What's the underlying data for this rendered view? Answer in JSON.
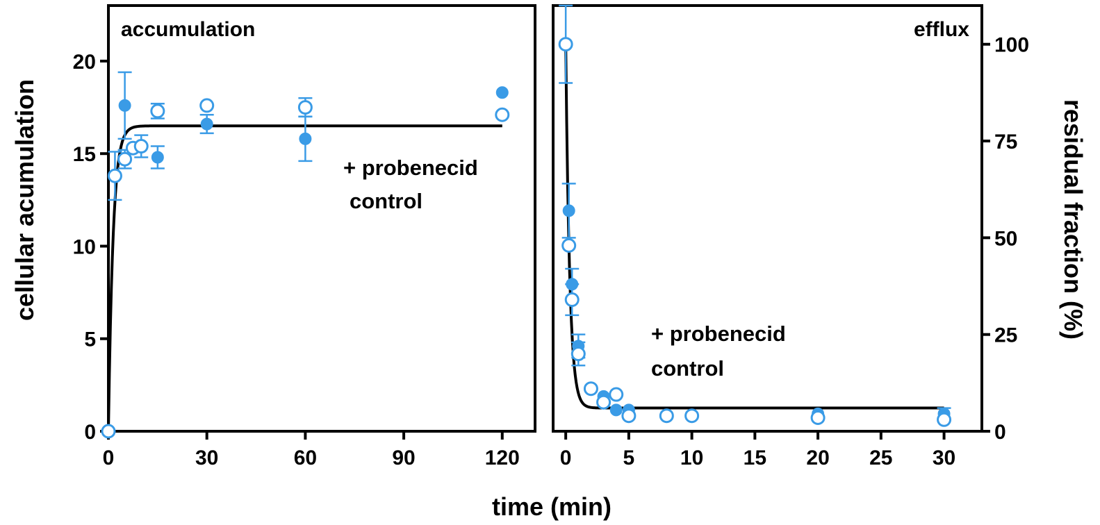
{
  "shared": {
    "xlabel": "time (min)"
  },
  "colors": {
    "series": "#3a9be6",
    "fit": "#000000",
    "axes": "#000000"
  },
  "chart_data": [
    {
      "id": "accumulation",
      "type": "scatter",
      "title": "accumulation",
      "ylabel": "cellular acumulation",
      "xlim": [
        0,
        130
      ],
      "ylim": [
        0,
        23
      ],
      "xticks": [
        0,
        30,
        60,
        90,
        120
      ],
      "yticks": [
        0,
        5,
        10,
        15,
        20
      ],
      "legend": {
        "position": "center-right",
        "entries": [
          "+ probenecid",
          "control"
        ]
      },
      "series": [
        {
          "name": "+ probenecid",
          "marker": "filled",
          "points": [
            {
              "x": 0,
              "y": 0
            },
            {
              "x": 5,
              "y": 17.6,
              "err": 1.8
            },
            {
              "x": 15,
              "y": 14.8,
              "err": 0.6
            },
            {
              "x": 30,
              "y": 16.6,
              "err": 0.5
            },
            {
              "x": 60,
              "y": 15.8,
              "err": 1.2
            },
            {
              "x": 120,
              "y": 18.3
            }
          ]
        },
        {
          "name": "control",
          "marker": "open",
          "points": [
            {
              "x": 0,
              "y": 0
            },
            {
              "x": 2,
              "y": 13.8,
              "err": 1.3
            },
            {
              "x": 5,
              "y": 14.7,
              "err": 0.5
            },
            {
              "x": 7.5,
              "y": 15.3
            },
            {
              "x": 10,
              "y": 15.4,
              "err": 0.6
            },
            {
              "x": 15,
              "y": 17.3,
              "err": 0.4
            },
            {
              "x": 30,
              "y": 17.6
            },
            {
              "x": 60,
              "y": 17.5,
              "err": 0.5
            },
            {
              "x": 120,
              "y": 17.1
            }
          ]
        }
      ],
      "fit": {
        "kind": "exp-rise",
        "plateau": 16.5,
        "k": 0.7,
        "x_range": [
          0,
          120
        ]
      }
    },
    {
      "id": "efflux",
      "type": "scatter",
      "title": "efflux",
      "ylabel": "residual fraction (%)",
      "yaxis_side": "right",
      "xlim": [
        -1,
        33
      ],
      "ylim": [
        0,
        110
      ],
      "xticks": [
        0,
        5,
        10,
        15,
        20,
        25,
        30
      ],
      "yticks": [
        0,
        25,
        50,
        75,
        100
      ],
      "legend": {
        "position": "center",
        "entries": [
          "+ probenecid",
          "control"
        ]
      },
      "series": [
        {
          "name": "+ probenecid",
          "marker": "filled",
          "points": [
            {
              "x": 0.25,
              "y": 57,
              "err": 7
            },
            {
              "x": 0.5,
              "y": 38,
              "err": 4
            },
            {
              "x": 1,
              "y": 22,
              "err": 3
            },
            {
              "x": 3,
              "y": 9
            },
            {
              "x": 4,
              "y": 5.5
            },
            {
              "x": 5,
              "y": 5.5
            },
            {
              "x": 20,
              "y": 4.5
            },
            {
              "x": 30,
              "y": 4.5,
              "err": 1.5
            }
          ]
        },
        {
          "name": "control",
          "marker": "open",
          "points": [
            {
              "x": 0,
              "y": 100,
              "err": 10
            },
            {
              "x": 0.25,
              "y": 48
            },
            {
              "x": 0.5,
              "y": 34,
              "err": 4
            },
            {
              "x": 1,
              "y": 20,
              "err": 3
            },
            {
              "x": 2,
              "y": 11
            },
            {
              "x": 3,
              "y": 7.5
            },
            {
              "x": 4,
              "y": 9.5
            },
            {
              "x": 5,
              "y": 4
            },
            {
              "x": 8,
              "y": 4
            },
            {
              "x": 10,
              "y": 4
            },
            {
              "x": 20,
              "y": 3.5
            },
            {
              "x": 30,
              "y": 3
            }
          ]
        }
      ],
      "fit": {
        "kind": "exp-decay",
        "y0": 100,
        "plateau": 6,
        "k": 3.2,
        "x_range": [
          0,
          30
        ]
      }
    }
  ]
}
